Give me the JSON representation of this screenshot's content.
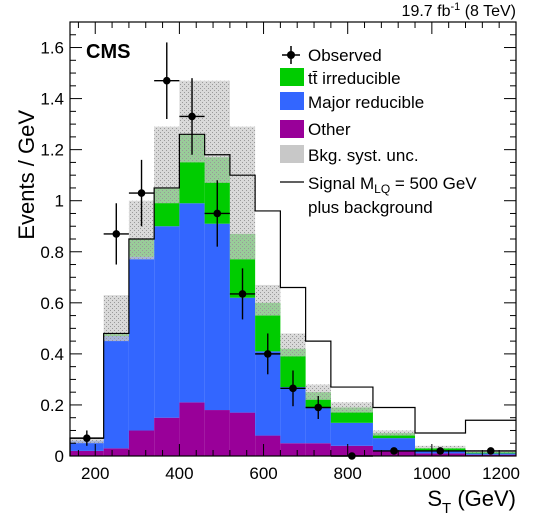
{
  "chart_data": {
    "type": "bar",
    "stacked": true,
    "experiment": "CMS",
    "lumi_text": {
      "main": "19.7 fb",
      "sup": "-1",
      "tail": " (8 TeV)"
    },
    "xlabel": {
      "main": "S",
      "sub": "T",
      "tail": " (GeV)"
    },
    "ylabel": "Events / GeV",
    "xlim": [
      140,
      1200
    ],
    "ylim": [
      0,
      1.7
    ],
    "x_ticks": [
      200,
      400,
      600,
      800,
      1000,
      1200
    ],
    "y_ticks": [
      0,
      0.2,
      0.4,
      0.6,
      0.8,
      1,
      1.2,
      1.4,
      1.6
    ],
    "y_tick_labels": [
      "0",
      "0.2",
      "0.4",
      "0.6",
      "0.8",
      "1",
      "1.2",
      "1.4",
      "1.6"
    ],
    "bin_edges": [
      140,
      220,
      280,
      340,
      400,
      460,
      520,
      580,
      640,
      700,
      760,
      860,
      960,
      1080,
      1200
    ],
    "series": [
      {
        "name": "Other",
        "color": "#990099",
        "values": [
          0.02,
          0.03,
          0.1,
          0.15,
          0.21,
          0.18,
          0.17,
          0.08,
          0.05,
          0.05,
          0.04,
          0.02,
          0.01,
          0.005
        ]
      },
      {
        "name": "Major reducible",
        "color": "#3366ff",
        "values": [
          0.04,
          0.44,
          0.68,
          0.75,
          0.78,
          0.73,
          0.45,
          0.33,
          0.22,
          0.14,
          0.09,
          0.05,
          0.01,
          0.005
        ]
      },
      {
        "name": "tt̄ irreducible",
        "color": "#00cc00",
        "values": [
          0.0,
          0.01,
          0.07,
          0.15,
          0.27,
          0.26,
          0.25,
          0.19,
          0.15,
          0.06,
          0.06,
          0.02,
          0.01,
          0.005
        ]
      }
    ],
    "syst_band": {
      "name": "Bkg. syst. unc.",
      "color": "#bbbbbb",
      "down": [
        0.05,
        0.45,
        0.77,
        0.99,
        1.15,
        1.07,
        0.77,
        0.55,
        0.39,
        0.22,
        0.17,
        0.08,
        0.03,
        0.013
      ],
      "up": [
        0.07,
        0.63,
        1.0,
        1.29,
        1.47,
        1.47,
        1.29,
        0.67,
        0.48,
        0.28,
        0.21,
        0.1,
        0.04,
        0.022
      ]
    },
    "signal": {
      "name": "Signal M",
      "sub": "LQ",
      "tail": " = 500 GeV",
      "line2": "plus background",
      "values": [
        0.07,
        0.48,
        0.85,
        1.05,
        1.26,
        1.18,
        1.1,
        0.96,
        0.66,
        0.45,
        0.27,
        0.19,
        0.09,
        0.14
      ]
    },
    "observed": {
      "name": "Observed",
      "points": [
        {
          "x": 180,
          "y": 0.07,
          "err": 0.03
        },
        {
          "x": 250,
          "y": 0.87,
          "err": 0.12
        },
        {
          "x": 310,
          "y": 1.03,
          "err": 0.13
        },
        {
          "x": 370,
          "y": 1.47,
          "err": 0.15
        },
        {
          "x": 430,
          "y": 1.33,
          "err": 0.15
        },
        {
          "x": 490,
          "y": 0.95,
          "err": 0.13
        },
        {
          "x": 550,
          "y": 0.635,
          "err": 0.1
        },
        {
          "x": 610,
          "y": 0.4,
          "err": 0.08
        },
        {
          "x": 670,
          "y": 0.265,
          "err": 0.07
        },
        {
          "x": 730,
          "y": 0.19,
          "err": 0.045
        },
        {
          "x": 810,
          "y": 0.0,
          "err": 0.01
        },
        {
          "x": 910,
          "y": 0.02,
          "err": 0.01
        },
        {
          "x": 1020,
          "y": 0.02,
          "err": 0.01
        },
        {
          "x": 1140,
          "y": 0.02,
          "err": 0.01
        }
      ]
    },
    "legend_placement": "top-right",
    "legend_order": [
      "observed",
      "tt",
      "major",
      "other",
      "syst",
      "signal"
    ]
  }
}
